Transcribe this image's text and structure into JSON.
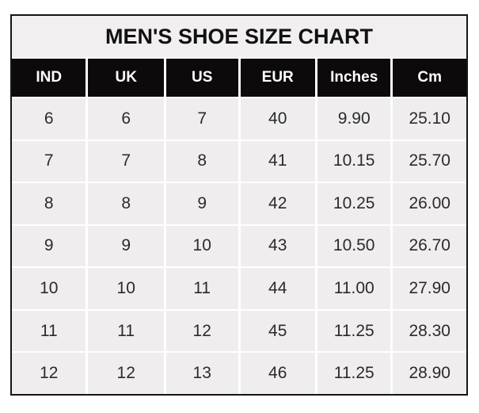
{
  "title": "MEN'S SHOE SIZE CHART",
  "colors": {
    "page_bg": "#ffffff",
    "title_bg": "#f1efef",
    "header_bg": "#0c0a0b",
    "header_text": "#ffffff",
    "cell_bg": "#efedee",
    "cell_text": "#2b2b2b",
    "border": "#151515",
    "gap": "#ffffff"
  },
  "chart_data": {
    "type": "table",
    "title": "MEN'S SHOE SIZE CHART",
    "columns": [
      "IND",
      "UK",
      "US",
      "EUR",
      "Inches",
      "Cm"
    ],
    "rows": [
      [
        "6",
        "6",
        "7",
        "40",
        "9.90",
        "25.10"
      ],
      [
        "7",
        "7",
        "8",
        "41",
        "10.15",
        "25.70"
      ],
      [
        "8",
        "8",
        "9",
        "42",
        "10.25",
        "26.00"
      ],
      [
        "9",
        "9",
        "10",
        "43",
        "10.50",
        "26.70"
      ],
      [
        "10",
        "10",
        "11",
        "44",
        "11.00",
        "27.90"
      ],
      [
        "11",
        "11",
        "12",
        "45",
        "11.25",
        "28.30"
      ],
      [
        "12",
        "12",
        "13",
        "46",
        "11.25",
        "28.90"
      ]
    ]
  }
}
